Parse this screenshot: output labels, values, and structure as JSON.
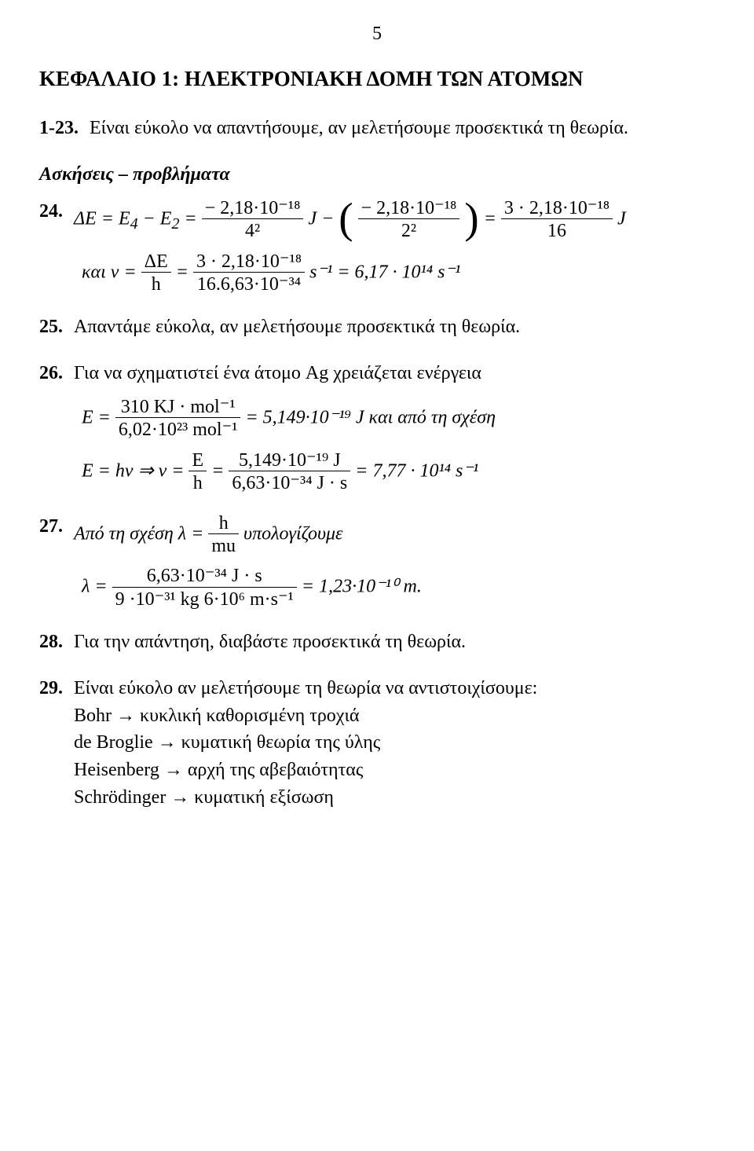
{
  "page_number": "5",
  "chapter_title": "ΚΕΦΑΛΑΙΟ 1: ΗΛΕΚΤΡΟΝΙΑΚΗ ΔΟΜΗ ΤΩΝ ΑΤΟΜΩΝ",
  "item23_num": "1-23.",
  "item23_text": "Είναι εύκολο να απαντήσουμε, αν μελετήσουμε προσεκτικά τη θεωρία.",
  "section_title": "Ασκήσεις – προβλήματα",
  "item24_num": "24.",
  "eq24a_lhs": "ΔE = E",
  "eq24a_sub4": "4",
  "eq24a_minus": " − E",
  "eq24a_sub2": "2",
  "eq24a_eq": " = ",
  "eq24a_f1n": "− 2,18·10⁻¹⁸",
  "eq24a_f1d": "4²",
  "eq24a_J": " J − ",
  "eq24a_f2n": "− 2,18·10⁻¹⁸",
  "eq24a_f2d": "2²",
  "eq24a_eq2": " = ",
  "eq24a_f3n": "3 · 2,18·10⁻¹⁸",
  "eq24a_f3d": "16",
  "eq24a_end": " J",
  "eq24b_prefix": "και ν = ",
  "eq24b_f1n": "ΔE",
  "eq24b_f1d": "h",
  "eq24b_mid": " = ",
  "eq24b_f2n": "3 · 2,18·10⁻¹⁸",
  "eq24b_f2d": "16.6,63·10⁻³⁴",
  "eq24b_end": " s⁻¹ = 6,17 · 10¹⁴ s⁻¹",
  "item25_num": "25.",
  "item25_text": "Απαντάμε εύκολα, αν μελετήσουμε προσεκτικά τη θεωρία.",
  "item26_num": "26.",
  "item26_text": "Για να σχηματιστεί ένα άτομο Ag χρειάζεται ενέργεια",
  "eq26a_lhs": "E = ",
  "eq26a_n": "310 KJ · mol⁻¹",
  "eq26a_d": "6,02·10²³ mol⁻¹",
  "eq26a_end": " = 5,149·10⁻¹⁹ J  και από τη σχέση",
  "eq26b_lhs": "E = hν ⇒ ν = ",
  "eq26b_f1n": "E",
  "eq26b_f1d": "h",
  "eq26b_mid": " = ",
  "eq26b_f2n": "5,149·10⁻¹⁹ J",
  "eq26b_f2d": "6,63·10⁻³⁴ J · s",
  "eq26b_end": " = 7,77 · 10¹⁴ s⁻¹",
  "item27_num": "27.",
  "item27_text_a": "Από τη σχέση λ = ",
  "item27_f1n": "h",
  "item27_f1d": "mu",
  "item27_text_b": " υπολογίζουμε",
  "eq27b_lhs": "λ = ",
  "eq27b_n": "6,63·10⁻³⁴ J · s",
  "eq27b_d": "9 ·10⁻³¹ kg 6·10⁶ m·s⁻¹",
  "eq27b_end": " =  1,23·10⁻¹⁰ m.",
  "item28_num": "28.",
  "item28_text": "Για την απάντηση, διαβάστε προσεκτικά τη θεωρία.",
  "item29_num": "29.",
  "item29_text": "Είναι εύκολο αν μελετήσουμε τη θεωρία να αντιστοιχίσουμε:",
  "item29_l1": "Bohr → κυκλική καθορισμένη τροχιά",
  "item29_l2": "de Broglie → κυματική θεωρία της ύλης",
  "item29_l3": "Heisenberg → αρχή της αβεβαιότητας",
  "item29_l4": "Schrödinger → κυματική εξίσωση",
  "colors": {
    "text": "#000000",
    "background": "#ffffff",
    "rule": "#000000"
  },
  "font_family": "Times New Roman",
  "base_font_size_pt": 18
}
